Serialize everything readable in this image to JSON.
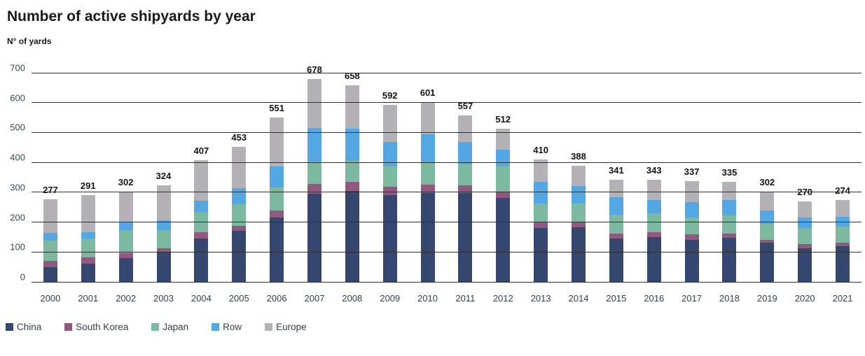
{
  "title": "Number of active shipyards by year",
  "y_axis_label": "N° of yards",
  "chart_data": {
    "type": "bar",
    "stacked": true,
    "title": "Number of active shipyards by year",
    "ylabel": "N° of yards",
    "xlabel": "",
    "ylim": [
      0,
      700
    ],
    "yticks": [
      0,
      100,
      200,
      300,
      400,
      500,
      600,
      700
    ],
    "grid": true,
    "legend_position": "bottom",
    "categories": [
      "2000",
      "2001",
      "2002",
      "2003",
      "2004",
      "2005",
      "2006",
      "2007",
      "2008",
      "2009",
      "2010",
      "2011",
      "2012",
      "2013",
      "2014",
      "2015",
      "2016",
      "2017",
      "2018",
      "2019",
      "2020",
      "2021"
    ],
    "totals": [
      277,
      291,
      302,
      324,
      407,
      453,
      551,
      678,
      658,
      592,
      601,
      557,
      512,
      410,
      388,
      341,
      343,
      337,
      335,
      302,
      270,
      274
    ],
    "series": [
      {
        "name": "China",
        "color": "#35476e",
        "values": [
          50,
          60,
          80,
          98,
          145,
          170,
          215,
          295,
          305,
          290,
          297,
          298,
          280,
          180,
          182,
          145,
          150,
          140,
          148,
          131,
          113,
          120
        ]
      },
      {
        "name": "South Korea",
        "color": "#91597f",
        "values": [
          20,
          21,
          16,
          15,
          21,
          17,
          24,
          33,
          30,
          28,
          28,
          24,
          22,
          20,
          18,
          17,
          17,
          19,
          13,
          9,
          13,
          12
        ]
      },
      {
        "name": "Japan",
        "color": "#7db9a0",
        "values": [
          68,
          65,
          78,
          61,
          68,
          72,
          78,
          75,
          70,
          69,
          75,
          72,
          85,
          62,
          62,
          62,
          63,
          56,
          61,
          54,
          55,
          53
        ]
      },
      {
        "name": "Row",
        "color": "#54a7e2",
        "values": [
          25,
          21,
          24,
          32,
          37,
          54,
          70,
          113,
          108,
          82,
          95,
          75,
          55,
          73,
          58,
          59,
          45,
          53,
          52,
          45,
          34,
          32
        ]
      },
      {
        "name": "Europe",
        "color": "#b4b2b6",
        "values": [
          114,
          124,
          104,
          118,
          136,
          140,
          164,
          162,
          145,
          123,
          106,
          88,
          70,
          75,
          68,
          58,
          68,
          69,
          61,
          63,
          55,
          57
        ]
      }
    ]
  }
}
